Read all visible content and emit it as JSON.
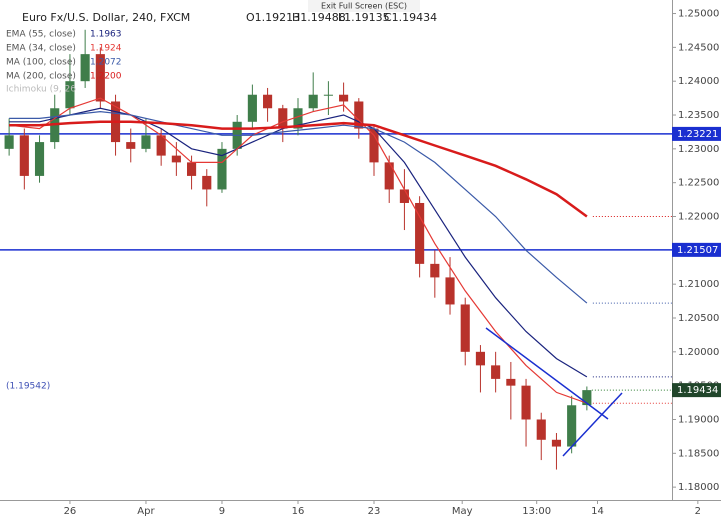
{
  "chart_data": {
    "type": "candlestick",
    "title": "Euro Fx/U.S. Dollar, 240, FXCM",
    "ohlc_header": [
      "O1.19213",
      "H1.19488",
      "L1.19135",
      "C1.19434"
    ],
    "exit_button": "Exit Full Screen (ESC)",
    "ichimoku_label": "Ichimoku (9, 26",
    "left_label": "(1.19542)",
    "up_color": "#3f7d4a",
    "down_color": "#b8322b",
    "x": [
      -4,
      -3,
      -2,
      -1,
      0,
      1,
      2,
      3,
      4,
      5,
      6,
      7,
      8,
      9,
      10,
      11,
      12,
      13,
      14,
      15,
      16,
      17,
      18,
      19,
      20,
      21,
      22,
      23,
      24,
      25,
      26,
      27,
      28,
      29,
      30,
      31,
      32,
      33,
      34
    ],
    "open": [
      1.23,
      1.232,
      1.226,
      1.231,
      1.236,
      1.24,
      1.244,
      1.237,
      1.231,
      1.23,
      1.232,
      1.229,
      1.228,
      1.226,
      1.224,
      1.23,
      1.234,
      1.238,
      1.236,
      1.233,
      1.236,
      1.238,
      1.238,
      1.237,
      1.233,
      1.228,
      1.224,
      1.222,
      1.213,
      1.211,
      1.207,
      1.2,
      1.198,
      1.196,
      1.195,
      1.19,
      1.187,
      1.186,
      1.19213
    ],
    "high": [
      1.2345,
      1.233,
      1.232,
      1.238,
      1.244,
      1.2476,
      1.245,
      1.238,
      1.233,
      1.2345,
      1.233,
      1.231,
      1.229,
      1.227,
      1.231,
      1.235,
      1.2395,
      1.239,
      1.2365,
      1.2375,
      1.2413,
      1.24,
      1.2398,
      1.2375,
      1.2335,
      1.229,
      1.227,
      1.223,
      1.215,
      1.214,
      1.208,
      1.201,
      1.2,
      1.1985,
      1.196,
      1.191,
      1.188,
      1.1935,
      1.19488
    ],
    "low": [
      1.229,
      1.224,
      1.225,
      1.23,
      1.235,
      1.239,
      1.236,
      1.229,
      1.228,
      1.2295,
      1.2275,
      1.226,
      1.224,
      1.2215,
      1.2235,
      1.229,
      1.233,
      1.234,
      1.231,
      1.232,
      1.2355,
      1.235,
      1.2355,
      1.2315,
      1.226,
      1.222,
      1.218,
      1.211,
      1.208,
      1.2055,
      1.198,
      1.194,
      1.194,
      1.19,
      1.186,
      1.184,
      1.1826,
      1.185,
      1.19135
    ],
    "close": [
      1.232,
      1.226,
      1.231,
      1.236,
      1.24,
      1.244,
      1.237,
      1.231,
      1.23,
      1.232,
      1.229,
      1.228,
      1.226,
      1.224,
      1.23,
      1.234,
      1.238,
      1.236,
      1.233,
      1.236,
      1.238,
      1.238,
      1.237,
      1.233,
      1.228,
      1.224,
      1.222,
      1.213,
      1.211,
      1.207,
      1.2,
      1.198,
      1.196,
      1.195,
      1.19,
      1.187,
      1.186,
      1.1921,
      1.19434
    ],
    "series": [
      {
        "name": "EMA (55, close)",
        "color": "#1a237e",
        "value_label": "1.1963",
        "width": 1.2,
        "x": [
          -4,
          -2,
          0,
          2,
          4,
          6,
          8,
          10,
          12,
          14,
          16,
          18,
          20,
          22,
          24,
          26,
          28,
          30,
          32,
          34
        ],
        "values": [
          1.234,
          1.234,
          1.235,
          1.236,
          1.235,
          1.233,
          1.23,
          1.229,
          1.231,
          1.233,
          1.234,
          1.235,
          1.233,
          1.228,
          1.221,
          1.214,
          1.208,
          1.203,
          1.199,
          1.1963
        ]
      },
      {
        "name": "EMA (34, close)",
        "color": "#e53935",
        "value_label": "1.1924",
        "width": 1.2,
        "x": [
          -4,
          -2,
          0,
          2,
          4,
          6,
          8,
          10,
          12,
          14,
          16,
          18,
          20,
          22,
          24,
          26,
          28,
          30,
          32,
          34
        ],
        "values": [
          1.2335,
          1.233,
          1.236,
          1.2375,
          1.235,
          1.232,
          1.228,
          1.228,
          1.232,
          1.234,
          1.2355,
          1.2365,
          1.232,
          1.224,
          1.216,
          1.209,
          1.203,
          1.198,
          1.194,
          1.1924
        ]
      },
      {
        "name": "MA (100, close)",
        "color": "#3b5aa8",
        "value_label": "1.2072",
        "width": 1.2,
        "x": [
          -4,
          -2,
          0,
          2,
          4,
          6,
          8,
          10,
          12,
          14,
          16,
          18,
          20,
          22,
          24,
          26,
          28,
          30,
          32,
          34
        ],
        "values": [
          1.2345,
          1.2345,
          1.235,
          1.2355,
          1.235,
          1.234,
          1.233,
          1.232,
          1.232,
          1.2325,
          1.233,
          1.2335,
          1.233,
          1.231,
          1.228,
          1.224,
          1.22,
          1.215,
          1.211,
          1.2072
        ]
      },
      {
        "name": "MA (200, close)",
        "color": "#d81b1b",
        "value_label": "1.2200",
        "width": 2.5,
        "x": [
          -4,
          -2,
          0,
          2,
          4,
          6,
          8,
          10,
          12,
          14,
          16,
          18,
          20,
          22,
          24,
          26,
          28,
          30,
          32,
          34
        ],
        "values": [
          1.2335,
          1.2335,
          1.2338,
          1.234,
          1.234,
          1.2338,
          1.2335,
          1.233,
          1.233,
          1.2332,
          1.2335,
          1.2338,
          1.2335,
          1.232,
          1.2305,
          1.229,
          1.2275,
          1.2255,
          1.2233,
          1.22
        ]
      }
    ],
    "levels": [
      {
        "value": 1.23221,
        "label": "1.23221"
      },
      {
        "value": 1.21507,
        "label": "1.21507"
      }
    ],
    "level_color": "#1a2fd0",
    "last_price": {
      "value": 1.19434,
      "label": "1.19434"
    },
    "xlim": [
      -4.6,
      39.6
    ],
    "xticks": [
      {
        "value": 0,
        "label": "26"
      },
      {
        "value": 5,
        "label": "Apr"
      },
      {
        "value": 10,
        "label": "9"
      },
      {
        "value": 15,
        "label": "16"
      },
      {
        "value": 20,
        "label": "23"
      },
      {
        "value": 25.8,
        "label": "May"
      },
      {
        "value": 30.7,
        "label": "13:00"
      },
      {
        "value": 34.7,
        "label": "14"
      },
      {
        "value": 41.3,
        "label": "2"
      }
    ],
    "ylim": [
      1.1781,
      1.252
    ],
    "yticks": [
      {
        "value": 1.18,
        "label": "1.18000"
      },
      {
        "value": 1.185,
        "label": "1.18500"
      },
      {
        "value": 1.19,
        "label": "1.19000"
      },
      {
        "value": 1.195,
        "label": "1.19500"
      },
      {
        "value": 1.2,
        "label": "1.20000"
      },
      {
        "value": 1.205,
        "label": "1.20500"
      },
      {
        "value": 1.21,
        "label": "1.21000"
      },
      {
        "value": 1.215,
        "label": "1.21500"
      },
      {
        "value": 1.22,
        "label": "1.22000"
      },
      {
        "value": 1.225,
        "label": "1.22500"
      },
      {
        "value": 1.23,
        "label": "1.23000"
      },
      {
        "value": 1.235,
        "label": "1.23500"
      },
      {
        "value": 1.24,
        "label": "1.24000"
      },
      {
        "value": 1.245,
        "label": "1.24500"
      },
      {
        "value": 1.25,
        "label": "1.25000"
      }
    ]
  }
}
